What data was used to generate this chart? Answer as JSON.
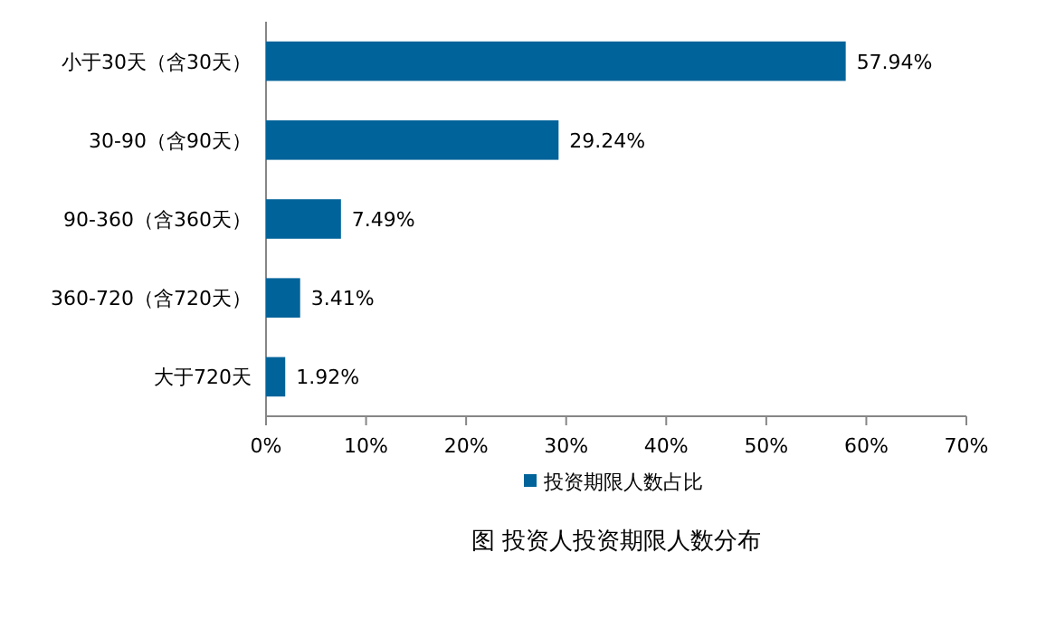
{
  "chart_data": {
    "type": "bar",
    "orientation": "horizontal",
    "title": "图 投资人投资期限人数分布",
    "categories": [
      "小于30天（含30天）",
      "30-90（含90天）",
      "90-360（含360天）",
      "360-720（含720天）",
      "大于720天"
    ],
    "series": [
      {
        "name": "投资期限人数占比",
        "color": "#00639a",
        "values": [
          57.94,
          29.24,
          7.49,
          3.41,
          1.92
        ],
        "value_labels": [
          "57.94%",
          "29.24%",
          "7.49%",
          "3.41%",
          "1.92%"
        ]
      }
    ],
    "xlim": [
      0,
      70
    ],
    "xticks": [
      {
        "value": 0,
        "label": "0%"
      },
      {
        "value": 10,
        "label": "10%"
      },
      {
        "value": 20,
        "label": "20%"
      },
      {
        "value": 30,
        "label": "30%"
      },
      {
        "value": 40,
        "label": "40%"
      },
      {
        "value": 50,
        "label": "50%"
      },
      {
        "value": 60,
        "label": "60%"
      },
      {
        "value": 70,
        "label": "70%"
      }
    ],
    "grid": false,
    "legend": "bottom"
  }
}
